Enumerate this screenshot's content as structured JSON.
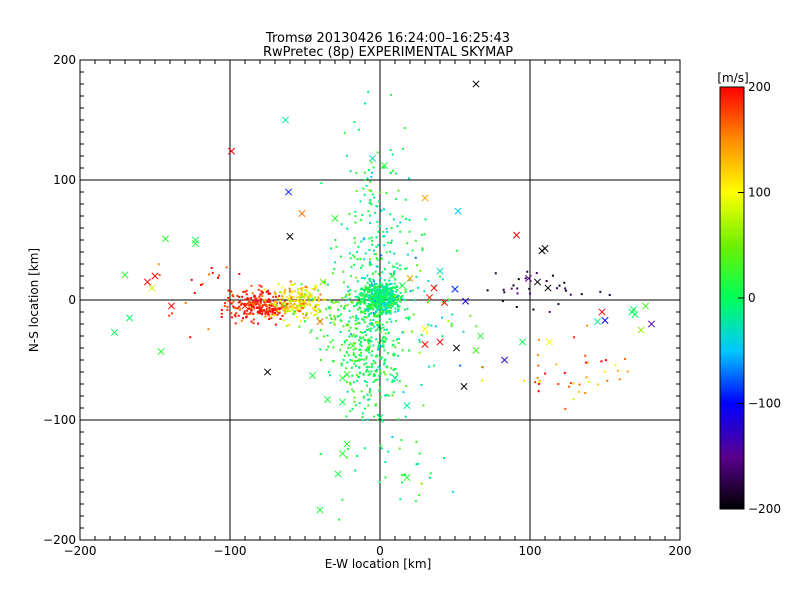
{
  "chart_data": {
    "type": "scatter",
    "title": "Tromsø 20130426 16:24:00–16:25:43",
    "subtitle": "RwPretec (8p) EXPERIMENTAL SKYMAP",
    "xlabel": "E-W location [km]",
    "ylabel": "N-S location [km]",
    "xlim": [
      -200,
      200
    ],
    "ylim": [
      -200,
      200
    ],
    "xticks": [
      "−200",
      "−100",
      "0",
      "100",
      "200"
    ],
    "xtick_values": [
      -200,
      -100,
      0,
      100,
      200
    ],
    "yticks": [
      "−200",
      "−100",
      "0",
      "100",
      "200"
    ],
    "ytick_values": [
      -200,
      -100,
      0,
      100,
      200
    ],
    "grid": true,
    "colorbar": {
      "label": "[m/s]",
      "range": [
        -200,
        200
      ],
      "tick_labels": [
        "200",
        "100",
        "0",
        "−100",
        "−200"
      ],
      "tick_values": [
        200,
        100,
        0,
        -100,
        -200
      ],
      "stops": [
        {
          "v": -200,
          "color": "#000000"
        },
        {
          "v": -150,
          "color": "#5a0090"
        },
        {
          "v": -100,
          "color": "#0000ff"
        },
        {
          "v": -50,
          "color": "#00c8ff"
        },
        {
          "v": 0,
          "color": "#00ff5a"
        },
        {
          "v": 50,
          "color": "#6ef000"
        },
        {
          "v": 100,
          "color": "#ffff00"
        },
        {
          "v": 150,
          "color": "#ff8c00"
        },
        {
          "v": 200,
          "color": "#ff0000"
        }
      ]
    },
    "crosses": [
      {
        "x": 64,
        "y": 180,
        "v": -200
      },
      {
        "x": -99,
        "y": 124,
        "v": 200
      },
      {
        "x": -63,
        "y": 150,
        "v": -20
      },
      {
        "x": -61,
        "y": 90,
        "v": -90
      },
      {
        "x": 3,
        "y": 112,
        "v": 15
      },
      {
        "x": -5,
        "y": 118,
        "v": -30
      },
      {
        "x": -52,
        "y": 72,
        "v": 160
      },
      {
        "x": -60,
        "y": 53,
        "v": -200
      },
      {
        "x": -30,
        "y": 68,
        "v": 20
      },
      {
        "x": 30,
        "y": 85,
        "v": 140
      },
      {
        "x": 52,
        "y": 74,
        "v": -50
      },
      {
        "x": 91,
        "y": 54,
        "v": 200
      },
      {
        "x": 108,
        "y": 41,
        "v": -200
      },
      {
        "x": 110,
        "y": 43,
        "v": -200
      },
      {
        "x": -143,
        "y": 51,
        "v": 20
      },
      {
        "x": -123,
        "y": 50,
        "v": 10
      },
      {
        "x": -123,
        "y": 47,
        "v": 10
      },
      {
        "x": -170,
        "y": 21,
        "v": 20
      },
      {
        "x": -150,
        "y": 20,
        "v": 200
      },
      {
        "x": -155,
        "y": 15,
        "v": 200
      },
      {
        "x": -152,
        "y": 10,
        "v": 80
      },
      {
        "x": -139,
        "y": -5,
        "v": 200
      },
      {
        "x": -167,
        "y": -15,
        "v": 0
      },
      {
        "x": -177,
        "y": -27,
        "v": 0
      },
      {
        "x": -146,
        "y": -43,
        "v": 20
      },
      {
        "x": -80,
        "y": -8,
        "v": 200
      },
      {
        "x": -90,
        "y": -5,
        "v": 200
      },
      {
        "x": -75,
        "y": -60,
        "v": -200
      },
      {
        "x": -40,
        "y": -18,
        "v": 160
      },
      {
        "x": -38,
        "y": 15,
        "v": 50
      },
      {
        "x": -18,
        "y": -38,
        "v": 30
      },
      {
        "x": -25,
        "y": -65,
        "v": 20
      },
      {
        "x": -45,
        "y": -63,
        "v": 10
      },
      {
        "x": -35,
        "y": -83,
        "v": 10
      },
      {
        "x": -25,
        "y": -85,
        "v": 10
      },
      {
        "x": -22,
        "y": -62,
        "v": 20
      },
      {
        "x": 10,
        "y": -65,
        "v": -20
      },
      {
        "x": 18,
        "y": -88,
        "v": -20
      },
      {
        "x": 0,
        "y": -98,
        "v": 0
      },
      {
        "x": -22,
        "y": -120,
        "v": 20
      },
      {
        "x": -25,
        "y": -128,
        "v": 20
      },
      {
        "x": -28,
        "y": -145,
        "v": 10
      },
      {
        "x": -40,
        "y": -175,
        "v": 10
      },
      {
        "x": 18,
        "y": -148,
        "v": 20
      },
      {
        "x": 30,
        "y": -24,
        "v": 100
      },
      {
        "x": 30,
        "y": -37,
        "v": 200
      },
      {
        "x": 40,
        "y": -35,
        "v": 200
      },
      {
        "x": 43,
        "y": -2,
        "v": 200
      },
      {
        "x": 36,
        "y": 10,
        "v": 200
      },
      {
        "x": 33,
        "y": 2,
        "v": 190
      },
      {
        "x": 40,
        "y": 24,
        "v": -30
      },
      {
        "x": 20,
        "y": 18,
        "v": 140
      },
      {
        "x": 15,
        "y": 12,
        "v": 20
      },
      {
        "x": 8,
        "y": 20,
        "v": 10
      },
      {
        "x": -8,
        "y": 10,
        "v": 20
      },
      {
        "x": 50,
        "y": 9,
        "v": -90
      },
      {
        "x": 57,
        "y": -1,
        "v": -120
      },
      {
        "x": 51,
        "y": -40,
        "v": -200
      },
      {
        "x": 56,
        "y": -72,
        "v": -200
      },
      {
        "x": 83,
        "y": -50,
        "v": -120
      },
      {
        "x": 67,
        "y": -30,
        "v": 20
      },
      {
        "x": 64,
        "y": -42,
        "v": 30
      },
      {
        "x": 95,
        "y": -35,
        "v": 0
      },
      {
        "x": 99,
        "y": 18,
        "v": -150
      },
      {
        "x": 105,
        "y": 15,
        "v": -200
      },
      {
        "x": 112,
        "y": 10,
        "v": -200
      },
      {
        "x": 113,
        "y": -35,
        "v": 100
      },
      {
        "x": 148,
        "y": -10,
        "v": 200
      },
      {
        "x": 150,
        "y": -17,
        "v": -100
      },
      {
        "x": 145,
        "y": -18,
        "v": -20
      },
      {
        "x": 168,
        "y": -10,
        "v": -20
      },
      {
        "x": 170,
        "y": -12,
        "v": 0
      },
      {
        "x": 177,
        "y": -5,
        "v": 30
      },
      {
        "x": 174,
        "y": -25,
        "v": 60
      },
      {
        "x": 181,
        "y": -20,
        "v": -140
      },
      {
        "x": 169,
        "y": -8,
        "v": 10
      }
    ]
  }
}
